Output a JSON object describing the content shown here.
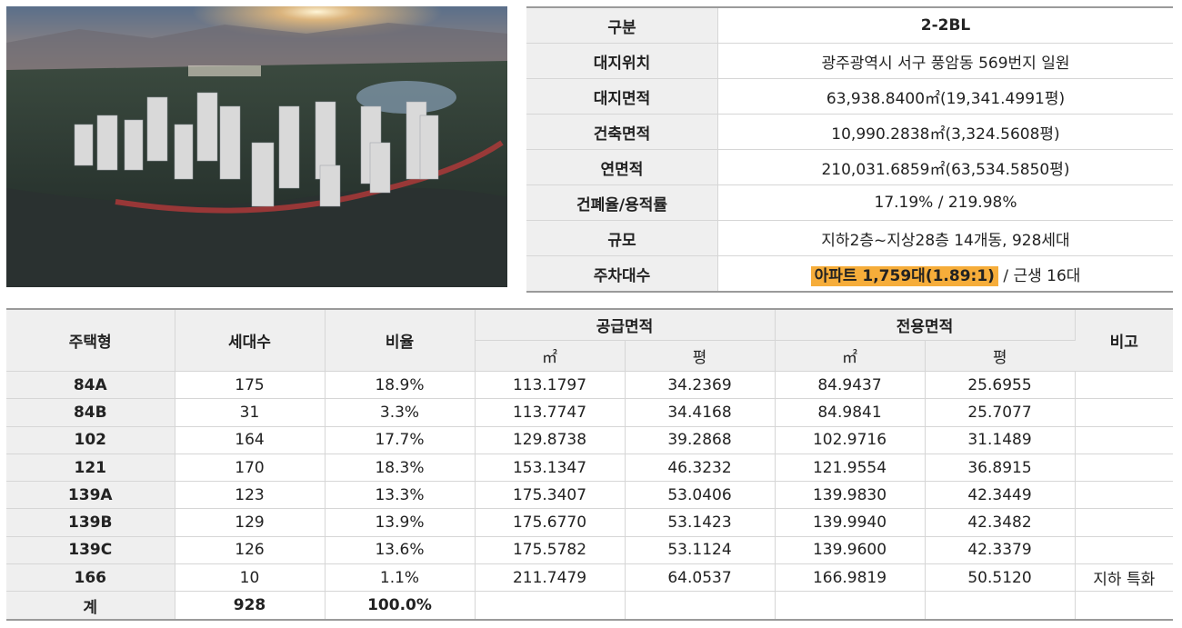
{
  "photo": {
    "icon": "aerial-rendering-image"
  },
  "info_table": {
    "rows": [
      {
        "label": "구분",
        "value": "2-2BL"
      },
      {
        "label": "대지위치",
        "value": "광주광역시 서구 풍암동 569번지 일원"
      },
      {
        "label": "대지면적",
        "value": "63,938.8400㎡(19,341.4991평)"
      },
      {
        "label": "건축면적",
        "value": "10,990.2838㎡(3,324.5608평)"
      },
      {
        "label": "연면적",
        "value": "210,031.6859㎡(63,534.5850평)"
      },
      {
        "label": "건폐율/용적률",
        "value": "17.19%  /  219.98%"
      },
      {
        "label": "규모",
        "value": "지하2층~지상28층 14개동, 928세대"
      },
      {
        "label": "주차대수",
        "highlight": "아파트 1,759대(1.89:1)",
        "rest": " / 근생 16대"
      }
    ],
    "highlight_color": "#f6ad3a"
  },
  "unit_table": {
    "headers": {
      "type": "주택형",
      "households": "세대수",
      "ratio": "비율",
      "supply_area": "공급면적",
      "exclusive_area": "전용면적",
      "note": "비고",
      "sqm": "㎡",
      "pyeong": "평"
    },
    "rows": [
      {
        "type": "84A",
        "households": "175",
        "ratio": "18.9%",
        "supply_sqm": "113.1797",
        "supply_py": "34.2369",
        "excl_sqm": "84.9437",
        "excl_py": "25.6955",
        "note": ""
      },
      {
        "type": "84B",
        "households": "31",
        "ratio": "3.3%",
        "supply_sqm": "113.7747",
        "supply_py": "34.4168",
        "excl_sqm": "84.9841",
        "excl_py": "25.7077",
        "note": ""
      },
      {
        "type": "102",
        "households": "164",
        "ratio": "17.7%",
        "supply_sqm": "129.8738",
        "supply_py": "39.2868",
        "excl_sqm": "102.9716",
        "excl_py": "31.1489",
        "note": ""
      },
      {
        "type": "121",
        "households": "170",
        "ratio": "18.3%",
        "supply_sqm": "153.1347",
        "supply_py": "46.3232",
        "excl_sqm": "121.9554",
        "excl_py": "36.8915",
        "note": ""
      },
      {
        "type": "139A",
        "households": "123",
        "ratio": "13.3%",
        "supply_sqm": "175.3407",
        "supply_py": "53.0406",
        "excl_sqm": "139.9830",
        "excl_py": "42.3449",
        "note": ""
      },
      {
        "type": "139B",
        "households": "129",
        "ratio": "13.9%",
        "supply_sqm": "175.6770",
        "supply_py": "53.1423",
        "excl_sqm": "139.9940",
        "excl_py": "42.3482",
        "note": ""
      },
      {
        "type": "139C",
        "households": "126",
        "ratio": "13.6%",
        "supply_sqm": "175.5782",
        "supply_py": "53.1124",
        "excl_sqm": "139.9600",
        "excl_py": "42.3379",
        "note": ""
      },
      {
        "type": "166",
        "households": "10",
        "ratio": "1.1%",
        "supply_sqm": "211.7479",
        "supply_py": "64.0537",
        "excl_sqm": "166.9819",
        "excl_py": "50.5120",
        "note": "지하 특화"
      }
    ],
    "total": {
      "type": "계",
      "households": "928",
      "ratio": "100.0%"
    }
  }
}
